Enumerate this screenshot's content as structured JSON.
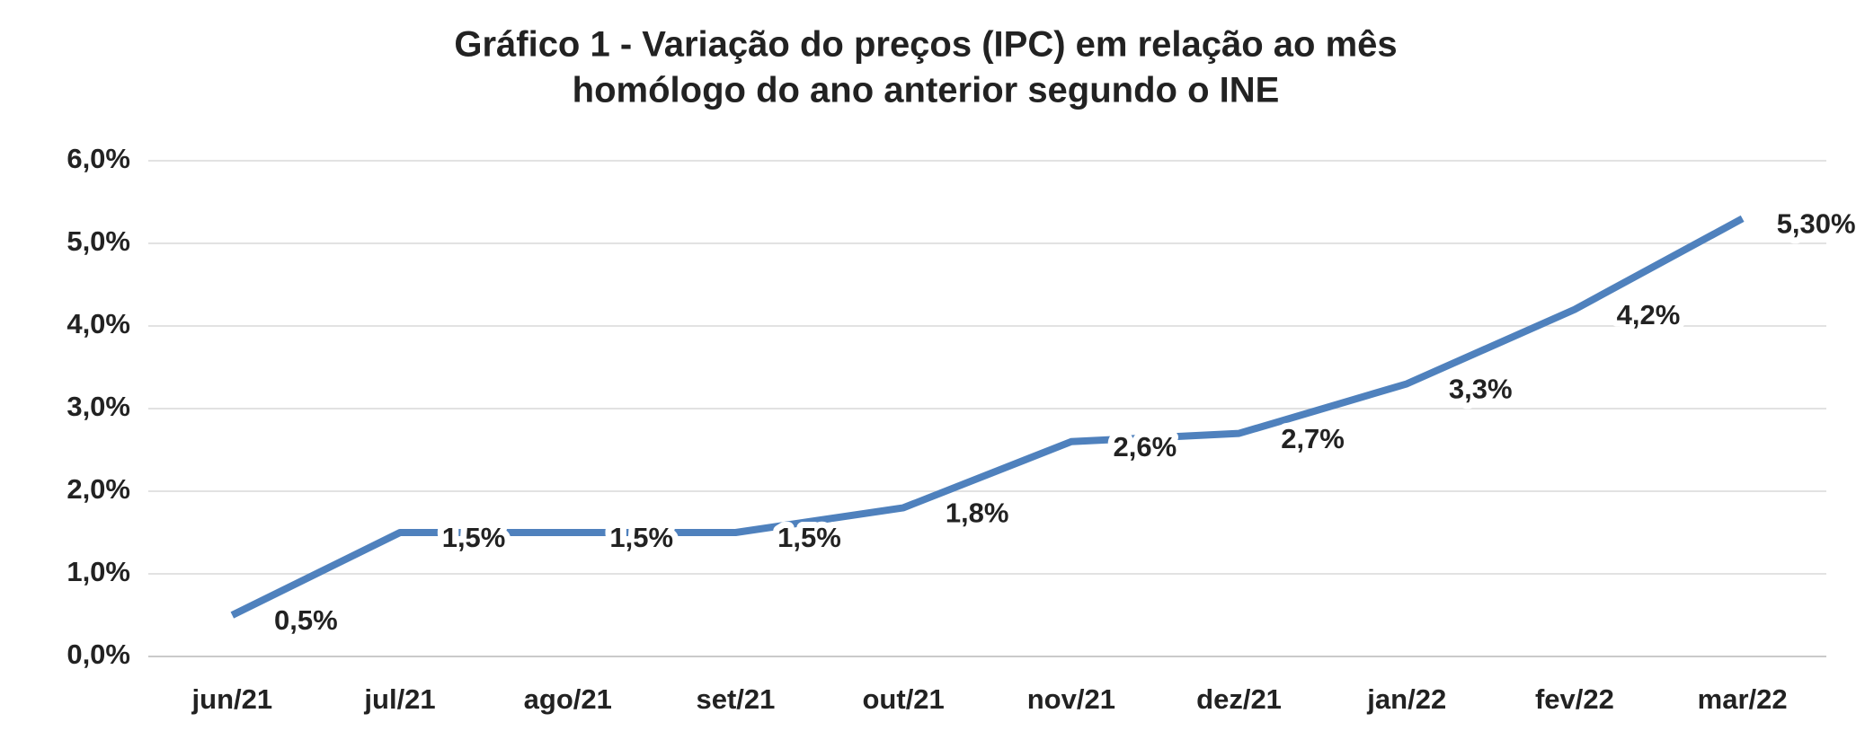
{
  "chart_data": {
    "type": "line",
    "title": [
      "Gráfico 1 - Variação do preços (IPC) em relação ao mês",
      "homólogo do ano anterior segundo o INE"
    ],
    "categories": [
      "jun/21",
      "jul/21",
      "ago/21",
      "set/21",
      "out/21",
      "nov/21",
      "dez/21",
      "jan/22",
      "fev/22",
      "mar/22"
    ],
    "values": [
      0.5,
      1.5,
      1.5,
      1.5,
      1.8,
      2.6,
      2.7,
      3.3,
      4.2,
      5.3
    ],
    "value_labels": [
      "0,5%",
      "1,5%",
      "1,5%",
      "1,5%",
      "1,8%",
      "2,6%",
      "2,7%",
      "3,3%",
      "4,2%",
      "5,30%"
    ],
    "color": "#4f81bd",
    "ylim": [
      0,
      6
    ],
    "yticks": [
      {
        "value": 0,
        "label": "0,0%"
      },
      {
        "value": 1,
        "label": "1,0%"
      },
      {
        "value": 2,
        "label": "2,0%"
      },
      {
        "value": 3,
        "label": "3,0%"
      },
      {
        "value": 4,
        "label": "4,0%"
      },
      {
        "value": 5,
        "label": "5,0%"
      },
      {
        "value": 6,
        "label": "6,0%"
      }
    ],
    "grid": true
  }
}
